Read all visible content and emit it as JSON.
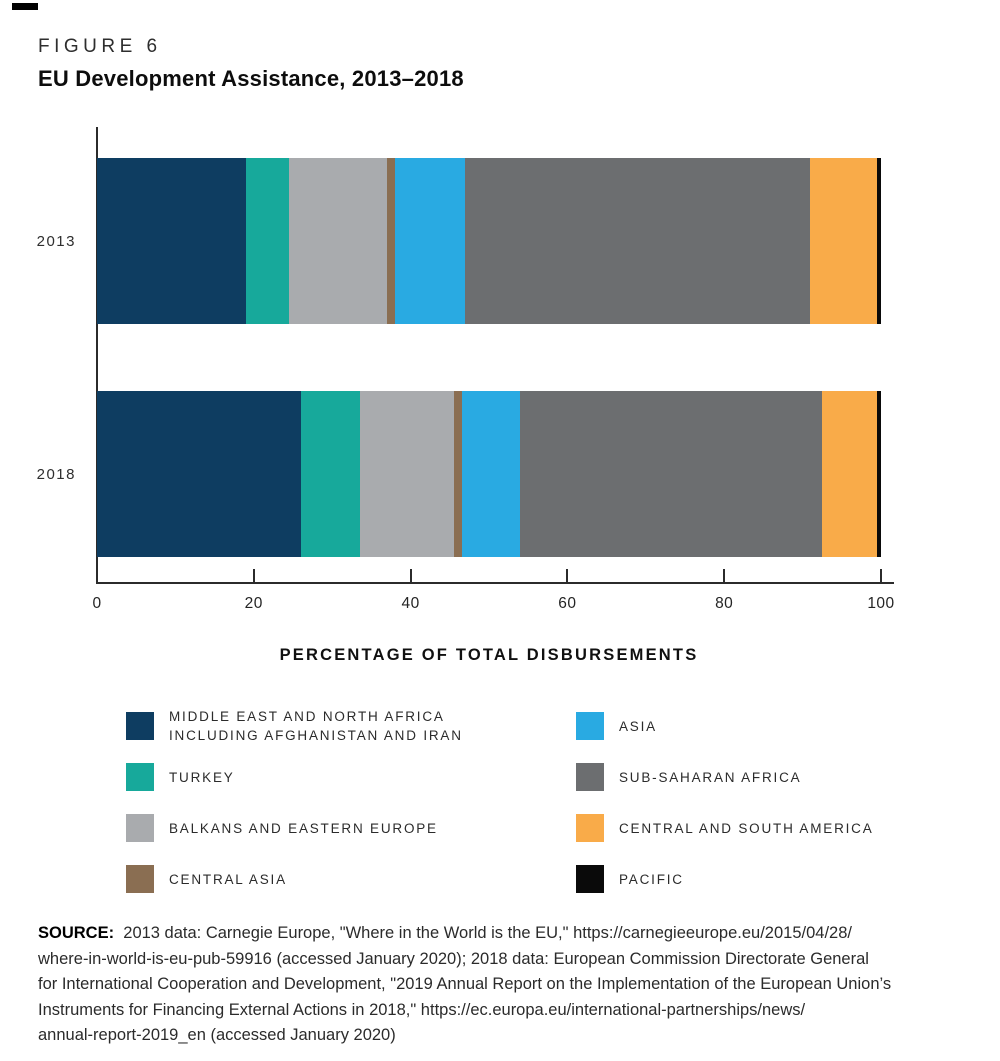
{
  "figure": {
    "kicker": "FIGURE 6",
    "title": "EU Development Assistance, 2013–2018"
  },
  "chart_data": {
    "type": "bar",
    "orientation": "horizontal",
    "stacked": true,
    "title": "EU Development Assistance, 2013–2018",
    "categories": [
      "2013",
      "2018"
    ],
    "series": [
      {
        "name": "Middle East and North Africa including Afghanistan and Iran",
        "color": "#0e3d61",
        "values": [
          19,
          26
        ]
      },
      {
        "name": "Turkey",
        "color": "#17a99b",
        "values": [
          5.5,
          7.5
        ]
      },
      {
        "name": "Balkans and Eastern Europe",
        "color": "#a9abae",
        "values": [
          12.5,
          12
        ]
      },
      {
        "name": "Central Asia",
        "color": "#8a6e52",
        "values": [
          1,
          1
        ]
      },
      {
        "name": "Asia",
        "color": "#29aae2",
        "values": [
          9,
          7.5
        ]
      },
      {
        "name": "Sub-Saharan Africa",
        "color": "#6c6e70",
        "values": [
          44,
          38.5
        ]
      },
      {
        "name": "Central and South America",
        "color": "#f9ab49",
        "values": [
          8.5,
          7
        ]
      },
      {
        "name": "Pacific",
        "color": "#0a0a0a",
        "values": [
          0.5,
          0.5
        ]
      }
    ],
    "xlabel": "PERCENTAGE OF TOTAL DISBURSEMENTS",
    "xticks": [
      0,
      20,
      40,
      60,
      80,
      100
    ],
    "xlim": [
      0,
      100
    ],
    "grid": false,
    "legend_position": "bottom"
  },
  "legend": {
    "columns": [
      [
        {
          "series": 0,
          "lines": [
            "MIDDLE EAST AND NORTH AFRICA",
            "INCLUDING AFGHANISTAN AND IRAN"
          ]
        },
        {
          "series": 1,
          "lines": [
            "TURKEY"
          ]
        },
        {
          "series": 2,
          "lines": [
            "BALKANS AND EASTERN EUROPE"
          ]
        },
        {
          "series": 3,
          "lines": [
            "CENTRAL ASIA"
          ]
        }
      ],
      [
        {
          "series": 4,
          "lines": [
            "ASIA"
          ]
        },
        {
          "series": 5,
          "lines": [
            "SUB-SAHARAN AFRICA"
          ]
        },
        {
          "series": 6,
          "lines": [
            "CENTRAL AND SOUTH AMERICA"
          ]
        },
        {
          "series": 7,
          "lines": [
            "PACIFIC"
          ]
        }
      ]
    ]
  },
  "source": {
    "label": "SOURCE:",
    "lines": [
      "2013 data: Carnegie Europe, \"Where in the World is the EU,\" https://carnegieeurope.eu/2015/04/28/",
      "where-in-world-is-eu-pub-59916 (accessed January 2020); 2018 data: European Commission Directorate General",
      "for International Cooperation and Development, \"2019 Annual Report on the Implementation of the European Union’s",
      "Instruments for Financing External Actions in 2018,\" https://ec.europa.eu/international-partnerships/news/",
      "annual-report-2019_en (accessed January 2020)"
    ]
  },
  "colors": {
    "axis": "#2b2b2b",
    "text": "#2b2b2b",
    "corner_mark": "#000000"
  }
}
